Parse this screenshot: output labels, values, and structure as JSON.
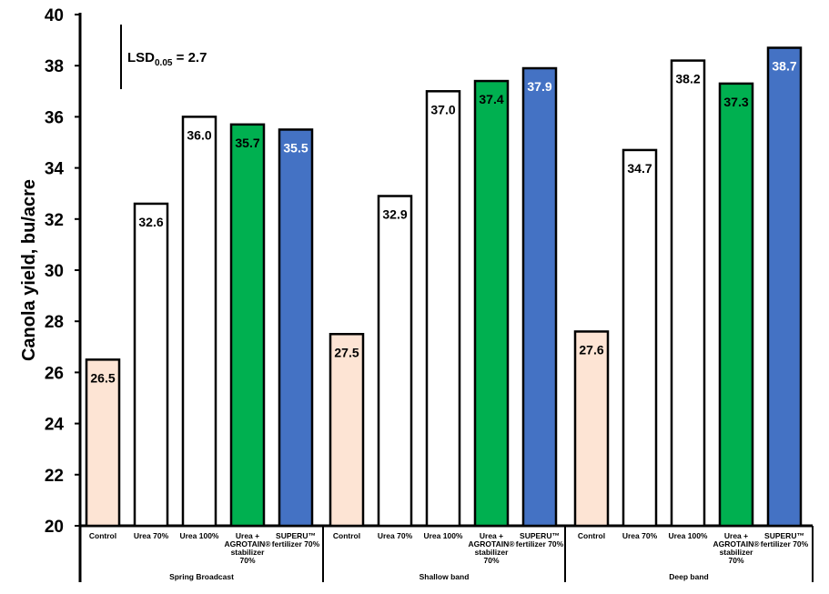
{
  "chart_data": {
    "type": "bar",
    "ylabel": "Canola yield,  bu/acre",
    "ylim": [
      20,
      40
    ],
    "yticks": [
      20,
      22,
      24,
      26,
      28,
      30,
      32,
      34,
      36,
      38,
      40
    ],
    "grid": false,
    "annotation": {
      "prefix": "LSD",
      "subscript": "0.05",
      "suffix": " = 2.7",
      "value": 2.7
    },
    "groups": [
      {
        "name": "Spring Broadcast",
        "bars": [
          {
            "label": "Control",
            "value": 26.5,
            "value_label": "26.5",
            "color": "#fde4d4",
            "text_color": "#000000"
          },
          {
            "label": "Urea 70%",
            "value": 32.6,
            "value_label": "32.6",
            "color": "#ffffff",
            "text_color": "#000000"
          },
          {
            "label": "Urea 100%",
            "value": 36.0,
            "value_label": "36.0",
            "color": "#ffffff",
            "text_color": "#000000"
          },
          {
            "label": "Urea + AGROTAIN® stabilizer 70%",
            "lines": [
              "Urea +",
              "AGROTAIN®",
              "stabilizer",
              "70%"
            ],
            "value": 35.7,
            "value_label": "35.7",
            "color": "#00b050",
            "text_color": "#000000"
          },
          {
            "label": "SUPERU™ fertilizer 70%",
            "lines": [
              "SUPERU™",
              "fertilizer 70%"
            ],
            "value": 35.5,
            "value_label": "35.5",
            "color": "#4472c4",
            "text_color": "#ffffff"
          }
        ]
      },
      {
        "name": "Shallow band",
        "bars": [
          {
            "label": "Control",
            "value": 27.5,
            "value_label": "27.5",
            "color": "#fde4d4",
            "text_color": "#000000"
          },
          {
            "label": "Urea 70%",
            "value": 32.9,
            "value_label": "32.9",
            "color": "#ffffff",
            "text_color": "#000000"
          },
          {
            "label": "Urea 100%",
            "value": 37.0,
            "value_label": "37.0",
            "color": "#ffffff",
            "text_color": "#000000"
          },
          {
            "label": "Urea + AGROTAIN® stabilizer 70%",
            "lines": [
              "Urea +",
              "AGROTAIN®",
              "stabilizer",
              "70%"
            ],
            "value": 37.4,
            "value_label": "37.4",
            "color": "#00b050",
            "text_color": "#000000"
          },
          {
            "label": "SUPERU™ fertilizer 70%",
            "lines": [
              "SUPERU™",
              "fertilizer 70%"
            ],
            "value": 37.9,
            "value_label": "37.9",
            "color": "#4472c4",
            "text_color": "#ffffff"
          }
        ]
      },
      {
        "name": "Deep band",
        "bars": [
          {
            "label": "Control",
            "value": 27.6,
            "value_label": "27.6",
            "color": "#fde4d4",
            "text_color": "#000000"
          },
          {
            "label": "Urea 70%",
            "value": 34.7,
            "value_label": "34.7",
            "color": "#ffffff",
            "text_color": "#000000"
          },
          {
            "label": "Urea 100%",
            "value": 38.2,
            "value_label": "38.2",
            "color": "#ffffff",
            "text_color": "#000000"
          },
          {
            "label": "Urea + AGROTAIN® stabilizer 70%",
            "lines": [
              "Urea +",
              "AGROTAIN®",
              "stabilizer",
              "70%"
            ],
            "value": 37.3,
            "value_label": "37.3",
            "color": "#00b050",
            "text_color": "#000000"
          },
          {
            "label": "SUPERU™ fertilizer 70%",
            "lines": [
              "SUPERU™",
              "fertilizer 70%"
            ],
            "value": 38.7,
            "value_label": "38.7",
            "color": "#4472c4",
            "text_color": "#ffffff"
          }
        ]
      }
    ]
  }
}
